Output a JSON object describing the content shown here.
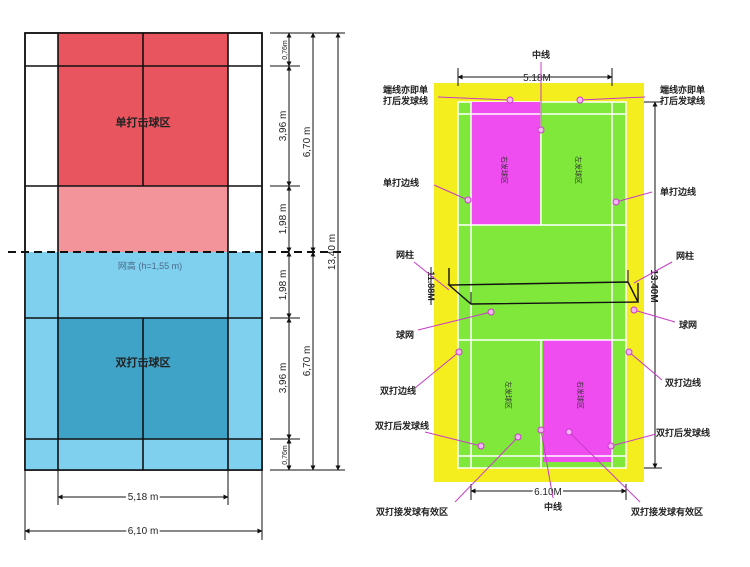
{
  "left_diagram": {
    "colors": {
      "singles_zone": "#e8555f",
      "singles_zone_light": "#f2949a",
      "doubles_zone_light": "#7fcfee",
      "doubles_zone_dark": "#3fa3c8",
      "line": "#111111"
    },
    "zone_labels": {
      "singles": "单打击球区",
      "doubles": "双打击球区"
    },
    "net_label": "网高 (h=1,55 m)",
    "dims": {
      "top_service_gap": "0,76m",
      "top_short_service": "3,96 m",
      "top_front": "1,98 m",
      "bottom_front": "1,98 m",
      "bottom_short_service": "3,96 m",
      "bottom_service_gap": "0,76m",
      "half_length_top": "6,70 m",
      "half_length_bottom": "6,70 m",
      "total_length": "13,40 m",
      "singles_width": "5,18 m",
      "doubles_width": "6,10 m"
    }
  },
  "right_diagram": {
    "colors": {
      "border": "#f4ee1f",
      "court": "#7fe83a",
      "service_box": "#f04df0",
      "leader": "#c83cc8",
      "marker": "#f5b6f5"
    },
    "dims": {
      "singles_width": "5.18M",
      "doubles_width": "6.10M",
      "total_length": "13.40M",
      "net_side": "11.88M"
    },
    "box_labels": {
      "top_left": "右发球区",
      "top_right": "左发球区",
      "bottom_left": "左发球区",
      "bottom_right": "右发球区"
    },
    "callouts": {
      "center_line_top": "中线",
      "long_service_line_left_1": "端线亦即单",
      "long_service_line_left_2": "打后发球线",
      "long_service_line_right_1": "端线亦即单",
      "long_service_line_right_2": "打后发球线",
      "singles_sideline_left": "单打边线",
      "singles_sideline_right": "单打边线",
      "net_post_left": "网柱",
      "net_post_right": "网柱",
      "net_left": "球网",
      "net_right": "球网",
      "doubles_sideline_left": "双打边线",
      "doubles_sideline_right": "双打边线",
      "doubles_long_service_left": "双打后发球线",
      "doubles_long_service_right": "双打后发球线",
      "doubles_receive_left": "双打接发球有效区",
      "doubles_receive_right": "双打接发球有效区",
      "center_line_bottom": "中线"
    }
  }
}
